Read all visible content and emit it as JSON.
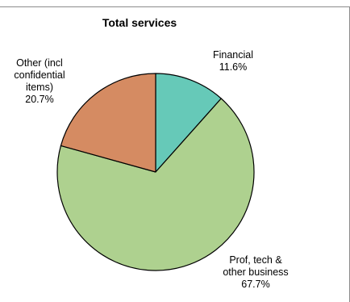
{
  "chart_data": {
    "type": "pie",
    "title": "Total services",
    "start_angle_deg": 0,
    "direction": "clockwise",
    "slices": [
      {
        "label_lines": [
          "Financial",
          "11.6%"
        ],
        "value": 11.6,
        "color": "#66c9b8"
      },
      {
        "label_lines": [
          "Prof, tech &",
          "other business",
          "67.7%"
        ],
        "value": 67.7,
        "color": "#aed18f"
      },
      {
        "label_lines": [
          "Other (incl",
          "confidential",
          "items)",
          "20.7%"
        ],
        "value": 20.7,
        "color": "#d58b62"
      }
    ],
    "legend": "none"
  }
}
